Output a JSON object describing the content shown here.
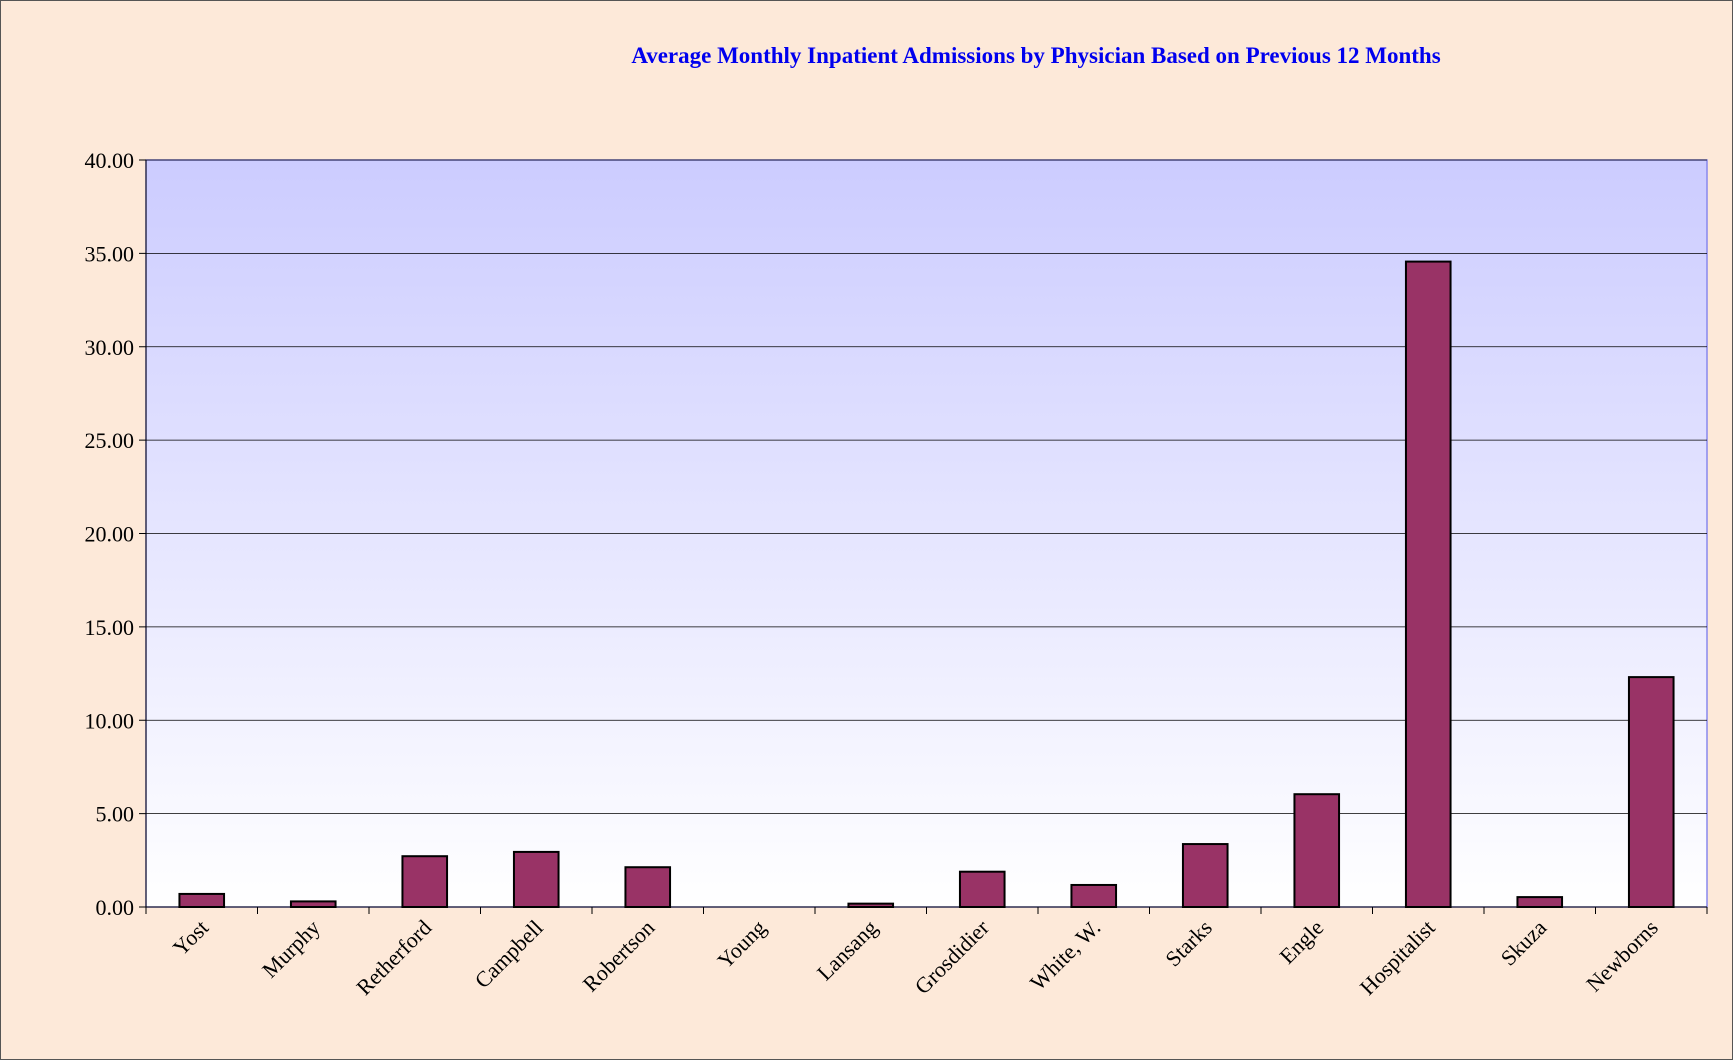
{
  "chart_data": {
    "type": "bar",
    "title": "Average Monthly Inpatient Admissions by Physician Based on Previous 12 Months",
    "categories": [
      "Yost",
      "Murphy",
      "Retherford",
      "Campbell",
      "Robertson",
      "Young",
      "Lansang",
      "Grosdidier",
      "White, W.",
      "Starks",
      "Engle",
      "Hospitalist",
      "Skuza",
      "Newborns"
    ],
    "values": [
      0.7,
      0.3,
      2.72,
      2.95,
      2.13,
      0,
      0.18,
      1.89,
      1.18,
      3.37,
      6.04,
      34.56,
      0.53,
      12.31
    ],
    "color": "#993366",
    "ylim": [
      0,
      40
    ],
    "yticks": [
      {
        "value": 0,
        "label": "0.00"
      },
      {
        "value": 5,
        "label": "5.00"
      },
      {
        "value": 10,
        "label": "10.00"
      },
      {
        "value": 15,
        "label": "15.00"
      },
      {
        "value": 20,
        "label": "20.00"
      },
      {
        "value": 25,
        "label": "25.00"
      },
      {
        "value": 30,
        "label": "30.00"
      },
      {
        "value": 35,
        "label": "35.00"
      },
      {
        "value": 40,
        "label": "40.00"
      }
    ],
    "grid": true
  }
}
